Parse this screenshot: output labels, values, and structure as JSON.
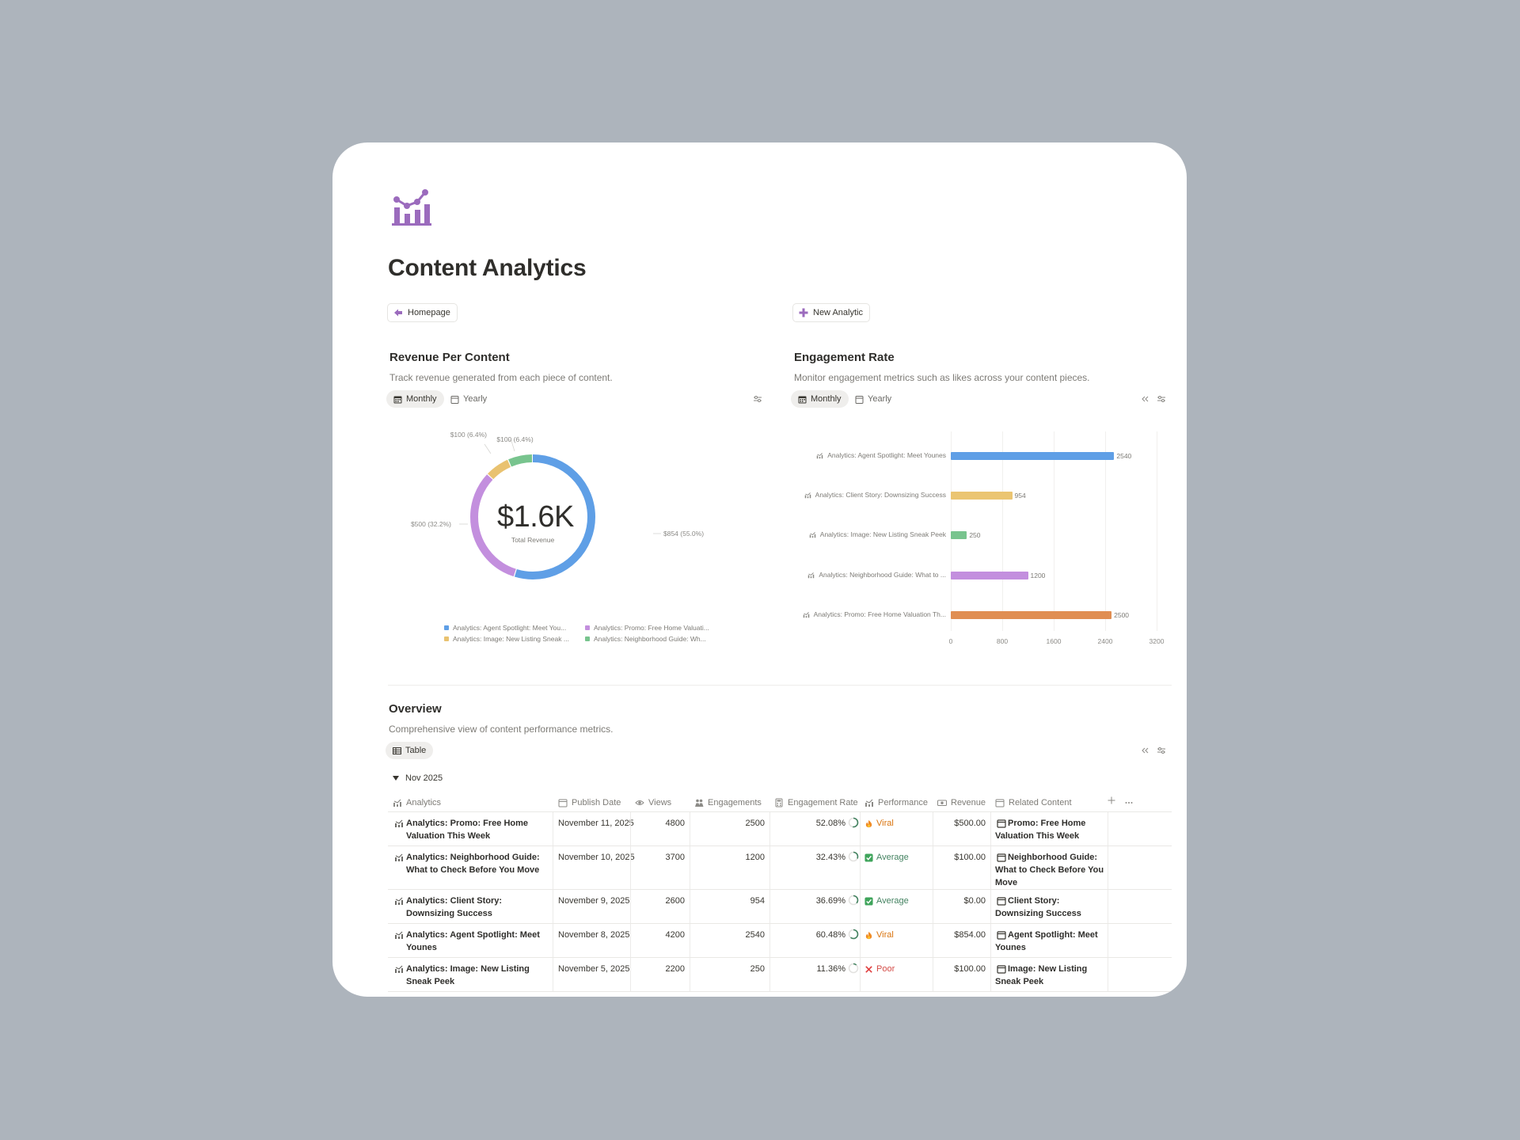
{
  "page": {
    "title": "Content Analytics",
    "icon": "analytics-chart-icon",
    "accent": "#9b6bbd"
  },
  "buttons": {
    "homepage": "Homepage",
    "new_analytic": "New Analytic"
  },
  "revenue": {
    "title": "Revenue Per Content",
    "description": "Track revenue generated from each piece of content.",
    "tabs": [
      "Monthly",
      "Yearly"
    ],
    "center_value": "$1.6K",
    "center_label": "Total Revenue",
    "slice_labels": [
      "$854 (55.0%)",
      "$500 (32.2%)",
      "$100 (6.4%)",
      "$100 (6.4%)"
    ],
    "legend": [
      "Analytics: Agent Spotlight: Meet You...",
      "Analytics: Promo: Free Home Valuati...",
      "Analytics: Image: New Listing Sneak ...",
      "Analytics: Neighborhood Guide: Wh..."
    ]
  },
  "engagement": {
    "title": "Engagement Rate",
    "description": "Monitor engagement metrics such as likes across your content pieces.",
    "tabs": [
      "Monthly",
      "Yearly"
    ],
    "bar_labels": [
      "Analytics: Agent Spotlight: Meet Younes",
      "Analytics: Client Story: Downsizing Success",
      "Analytics: Image: New Listing Sneak Peek",
      "Analytics: Neighborhood Guide: What to ...",
      "Analytics: Promo: Free Home Valuation Th..."
    ],
    "bar_values": [
      "2540",
      "954",
      "250",
      "1200",
      "2500"
    ],
    "x_ticks": [
      "0",
      "800",
      "1600",
      "2400",
      "3200"
    ]
  },
  "chart_data": [
    {
      "type": "pie",
      "title": "Revenue Per Content",
      "categories": [
        "Analytics: Agent Spotlight: Meet Younes",
        "Analytics: Promo: Free Home Valuation This Week",
        "Analytics: Image: New Listing Sneak Peek",
        "Analytics: Neighborhood Guide: What to Check Before You Move"
      ],
      "values": [
        854,
        500,
        100,
        100
      ],
      "colors": [
        "#5f9fe6",
        "#c38fde",
        "#e9c270",
        "#78c48e"
      ]
    },
    {
      "type": "bar",
      "orientation": "horizontal",
      "title": "Engagement Rate",
      "categories": [
        "Analytics: Agent Spotlight: Meet Younes",
        "Analytics: Client Story: Downsizing Success",
        "Analytics: Image: New Listing Sneak Peek",
        "Analytics: Neighborhood Guide: What to ...",
        "Analytics: Promo: Free Home Valuation Th..."
      ],
      "values": [
        2540,
        954,
        250,
        1200,
        2500
      ],
      "xlim": [
        0,
        3200
      ],
      "colors": [
        "#5f9fe6",
        "#ebc572",
        "#78c48e",
        "#c38fde",
        "#e08e52"
      ],
      "grid": true
    }
  ],
  "overview": {
    "title": "Overview",
    "description": "Comprehensive view of content performance metrics.",
    "view_tab": "Table",
    "group": "Nov 2025",
    "columns": [
      "Analytics",
      "Publish Date",
      "Views",
      "Engagements",
      "Engagement Rate",
      "Performance",
      "Revenue",
      "Related Content"
    ],
    "rows": [
      {
        "analytics": "Analytics: Promo: Free Home Valuation This Week",
        "date": "November 11, 2025",
        "views": "4800",
        "engagements": "2500",
        "rate": "52.08%",
        "rate_fraction": 0.5208,
        "performance": "Viral",
        "perf_icon": "fire-icon",
        "revenue": "$500.00",
        "related": "Promo: Free Home Valuation This Week"
      },
      {
        "analytics": "Analytics: Neighborhood Guide: What to Check Before You Move",
        "date": "November 10, 2025",
        "views": "3700",
        "engagements": "1200",
        "rate": "32.43%",
        "rate_fraction": 0.3243,
        "performance": "Average",
        "perf_icon": "check-icon",
        "revenue": "$100.00",
        "related": "Neighborhood Guide: What to Check Before You Move"
      },
      {
        "analytics": "Analytics: Client Story: Downsizing Success",
        "date": "November 9, 2025",
        "views": "2600",
        "engagements": "954",
        "rate": "36.69%",
        "rate_fraction": 0.3669,
        "performance": "Average",
        "perf_icon": "check-icon",
        "revenue": "$0.00",
        "related": "Client Story: Downsizing Success"
      },
      {
        "analytics": "Analytics: Agent Spotlight: Meet Younes",
        "date": "November 8, 2025",
        "views": "4200",
        "engagements": "2540",
        "rate": "60.48%",
        "rate_fraction": 0.6048,
        "performance": "Viral",
        "perf_icon": "fire-icon",
        "revenue": "$854.00",
        "related": "Agent Spotlight: Meet Younes"
      },
      {
        "analytics": "Analytics: Image: New Listing Sneak Peek",
        "date": "November 5, 2025",
        "views": "2200",
        "engagements": "250",
        "rate": "11.36%",
        "rate_fraction": 0.1136,
        "performance": "Poor",
        "perf_icon": "x-icon",
        "revenue": "$100.00",
        "related": "Image: New Listing Sneak Peek"
      }
    ]
  },
  "colors": {
    "viral": "#d9730d",
    "average": "#448361",
    "poor": "#d44c47"
  }
}
